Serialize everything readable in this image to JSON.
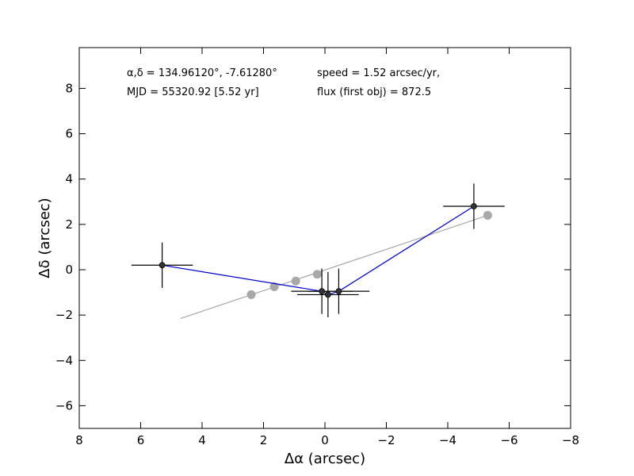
{
  "chart_data": {
    "type": "scatter",
    "xlabel": "Δα (arcsec)",
    "ylabel": "Δδ (arcsec)",
    "xlim": [
      8,
      -8
    ],
    "ylim": [
      -7,
      9.8
    ],
    "x_ticks": [
      8,
      6,
      4,
      2,
      0,
      -2,
      -4,
      -6,
      -8
    ],
    "x_tick_labels": [
      "8",
      "6",
      "4",
      "2",
      "0",
      "−2",
      "−4",
      "−6",
      "−8"
    ],
    "y_ticks": [
      -6,
      -4,
      -2,
      0,
      2,
      4,
      6,
      8
    ],
    "y_tick_labels": [
      "−6",
      "−4",
      "−2",
      "0",
      "2",
      "4",
      "6",
      "8"
    ],
    "grid": false,
    "annotations": {
      "coords": "α,δ = 134.96120°, -7.61280°",
      "mjd": "MJD = 55320.92 [5.52 yr]",
      "speed": "speed = 1.52 arcsec/yr,",
      "flux": "flux (first obj) = 872.5"
    },
    "observed": {
      "color": "#333333",
      "line_color": "#0000cc",
      "points": [
        {
          "x": 5.3,
          "y": 0.2,
          "xerr": 1.0,
          "yerr": 1.0
        },
        {
          "x": 0.1,
          "y": -0.95,
          "xerr": 1.0,
          "yerr": 1.0
        },
        {
          "x": -0.1,
          "y": -1.1,
          "xerr": 1.0,
          "yerr": 1.0
        },
        {
          "x": -0.45,
          "y": -0.95,
          "xerr": 1.0,
          "yerr": 1.0
        },
        {
          "x": -4.85,
          "y": 2.8,
          "xerr": 1.0,
          "yerr": 1.0
        }
      ]
    },
    "model": {
      "color": "#a8a8a8",
      "line": {
        "x": [
          4.7,
          -5.3
        ],
        "y": [
          -2.15,
          2.4
        ]
      },
      "points": [
        {
          "x": 2.4,
          "y": -1.1
        },
        {
          "x": 1.65,
          "y": -0.75
        },
        {
          "x": 0.95,
          "y": -0.5
        },
        {
          "x": 0.25,
          "y": -0.2
        },
        {
          "x": -5.3,
          "y": 2.4
        }
      ]
    }
  }
}
